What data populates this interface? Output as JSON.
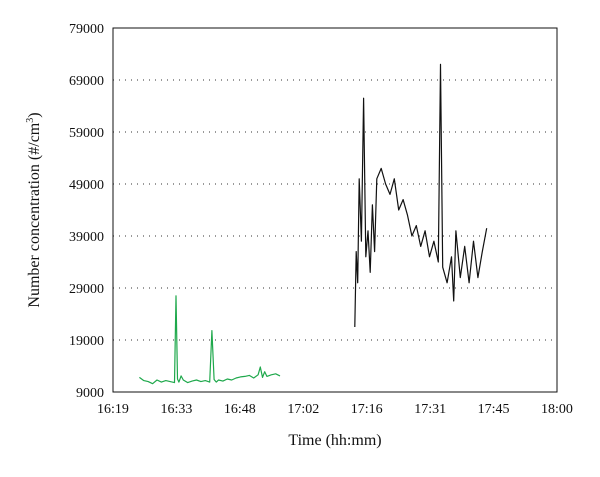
{
  "chart_data": {
    "type": "line",
    "xlabel": "Time (hh:mm)",
    "ylabel": "Number concentration (#/cm3)",
    "ylabel_parts": {
      "main": "Number concentration (#/cm",
      "sup": "3",
      "close": ")"
    },
    "x_ticks": [
      "16:19",
      "16:33",
      "16:48",
      "17:02",
      "17:16",
      "17:31",
      "17:45",
      "18:00"
    ],
    "y_ticks": [
      "9000",
      "19000",
      "29000",
      "39000",
      "49000",
      "59000",
      "69000",
      "79000"
    ],
    "xlim": [
      "16:19",
      "18:00"
    ],
    "ylim": [
      9000,
      79000
    ],
    "grid": "horizontal dotted",
    "series": [
      {
        "color": "#1ea84b",
        "x": [
          "16:25",
          "16:26",
          "16:27",
          "16:28",
          "16:29",
          "16:30",
          "16:31",
          "16:32",
          "16:33",
          "16:33:20",
          "16:33:40",
          "16:34",
          "16:34:30",
          "16:35",
          "16:36",
          "16:37",
          "16:38",
          "16:39",
          "16:40",
          "16:41",
          "16:41:30",
          "16:42",
          "16:42:30",
          "16:43",
          "16:44",
          "16:45",
          "16:46",
          "16:47",
          "16:48",
          "16:49",
          "16:50",
          "16:51",
          "16:52",
          "16:52:30",
          "16:53",
          "16:53:30",
          "16:54",
          "16:55",
          "16:56",
          "16:57"
        ],
        "values": [
          11800,
          11200,
          11000,
          10600,
          11300,
          10900,
          11200,
          11000,
          10800,
          27500,
          11500,
          10900,
          12100,
          11300,
          10800,
          11100,
          11300,
          11000,
          11200,
          10900,
          20800,
          11400,
          10900,
          11300,
          11100,
          11500,
          11300,
          11700,
          11900,
          12000,
          12200,
          11700,
          12300,
          13800,
          11800,
          12900,
          12000,
          12300,
          12500,
          12100
        ]
      },
      {
        "color": "#111111",
        "x": [
          "17:14",
          "17:14:20",
          "17:14:40",
          "17:15",
          "17:15:30",
          "17:16",
          "17:16:30",
          "17:17",
          "17:17:30",
          "17:18",
          "17:18:30",
          "17:19",
          "17:20",
          "17:21",
          "17:22",
          "17:23",
          "17:24",
          "17:25",
          "17:26",
          "17:27",
          "17:28",
          "17:29",
          "17:30",
          "17:31",
          "17:32",
          "17:33",
          "17:33:30",
          "17:34",
          "17:35",
          "17:36",
          "17:36:30",
          "17:37",
          "17:38",
          "17:39",
          "17:40",
          "17:41",
          "17:42",
          "17:43",
          "17:44"
        ],
        "values": [
          21500,
          36000,
          30000,
          50000,
          38000,
          65500,
          35000,
          40000,
          32000,
          45000,
          36000,
          50000,
          52000,
          49000,
          47000,
          50000,
          44000,
          46000,
          43000,
          39000,
          41000,
          37000,
          40000,
          35000,
          38000,
          34000,
          72000,
          33000,
          30000,
          35000,
          26500,
          40000,
          31000,
          37000,
          30000,
          38000,
          31000,
          36000,
          40500
        ]
      }
    ]
  }
}
